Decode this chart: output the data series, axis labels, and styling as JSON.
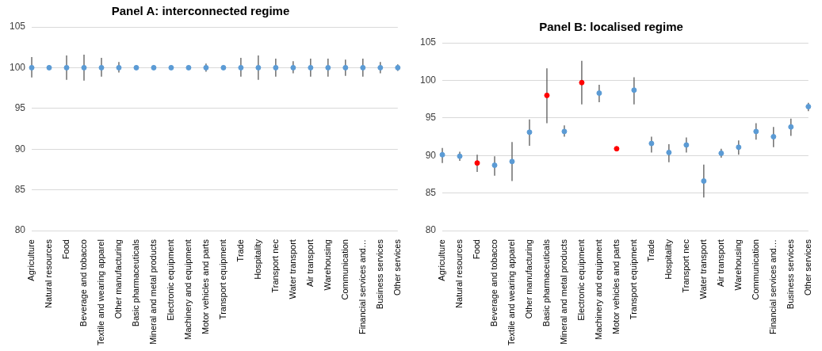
{
  "chart_data": [
    {
      "type": "scatter",
      "title": "Panel A: interconnected regime",
      "categories": [
        "Agriculture",
        "Natural resources",
        "Food",
        "Beverage and tobacco",
        "Textile and wearing apparel",
        "Other manufacturing",
        "Basic pharmaceuticals",
        "Mineral and metal products",
        "Electronic equipment",
        "Machinery and equipment",
        "Motor vehicles and parts",
        "Transport equipment",
        "Trade",
        "Hospitality",
        "Transport nec",
        "Water transport",
        "Air transport",
        "Warehousing",
        "Communication",
        "Financial services and…",
        "Business services",
        "Other services"
      ],
      "values": [
        100,
        100,
        100,
        100,
        100,
        100,
        100,
        100,
        100,
        100,
        100,
        100,
        100,
        100,
        100,
        100,
        100,
        100,
        100,
        100,
        100,
        100
      ],
      "errors": [
        [
          98.8,
          101.3
        ],
        null,
        [
          98.5,
          101.5
        ],
        [
          98.4,
          101.6
        ],
        [
          98.9,
          101.2
        ],
        [
          99.4,
          100.7
        ],
        null,
        null,
        null,
        null,
        [
          99.5,
          100.5
        ],
        null,
        [
          98.9,
          101.2
        ],
        [
          98.5,
          101.5
        ],
        [
          98.9,
          101.1
        ],
        [
          99.3,
          100.8
        ],
        [
          98.9,
          101.1
        ],
        [
          98.9,
          101.1
        ],
        [
          99.0,
          101.0
        ],
        [
          98.9,
          101.1
        ],
        [
          99.3,
          100.7
        ],
        [
          99.6,
          100.4
        ]
      ],
      "color": "#5b9bd5",
      "ylim": [
        80,
        105
      ],
      "yticks": [
        80,
        85,
        90,
        95,
        100,
        105
      ],
      "grid": "y",
      "legend": false,
      "marker": "circle"
    },
    {
      "type": "scatter",
      "title": "Panel B: localised regime",
      "categories": [
        "Agriculture",
        "Natural resources",
        "Food",
        "Beverage and tobacco",
        "Textile and wearing apparel",
        "Other manufacturing",
        "Basic pharmaceuticals",
        "Mineral and metal products",
        "Electronic equipment",
        "Machinery and equipment",
        "Motor vehicles and parts",
        "Transport equipment",
        "Trade",
        "Hospitality",
        "Transport nec",
        "Water transport",
        "Air transport",
        "Warehousing",
        "Communication",
        "Financial services and…",
        "Business services",
        "Other services"
      ],
      "values": [
        90.1,
        89.9,
        89.0,
        88.7,
        89.2,
        93.1,
        98.0,
        93.2,
        99.7,
        98.3,
        90.9,
        98.7,
        91.6,
        90.4,
        91.4,
        86.6,
        90.3,
        91.1,
        93.2,
        92.5,
        93.8,
        96.5
      ],
      "errors": [
        [
          89.0,
          91.0
        ],
        [
          89.3,
          90.5
        ],
        [
          87.8,
          90.1
        ],
        [
          87.3,
          89.9
        ],
        [
          86.6,
          91.8
        ],
        [
          91.3,
          94.8
        ],
        [
          94.3,
          101.6
        ],
        [
          92.5,
          94.0
        ],
        [
          96.8,
          102.6
        ],
        [
          97.1,
          99.4
        ],
        null,
        [
          96.8,
          100.4
        ],
        [
          90.4,
          92.5
        ],
        [
          89.1,
          91.5
        ],
        [
          90.4,
          92.4
        ],
        [
          84.4,
          88.8
        ],
        [
          89.7,
          90.9
        ],
        [
          90.1,
          92.0
        ],
        [
          92.1,
          94.3
        ],
        [
          91.1,
          93.8
        ],
        [
          92.6,
          94.9
        ],
        [
          95.9,
          97.0
        ]
      ],
      "colors": [
        "#5b9bd5",
        "#5b9bd5",
        "#ff0000",
        "#5b9bd5",
        "#5b9bd5",
        "#5b9bd5",
        "#ff0000",
        "#5b9bd5",
        "#ff0000",
        "#5b9bd5",
        "#ff0000",
        "#5b9bd5",
        "#5b9bd5",
        "#5b9bd5",
        "#5b9bd5",
        "#5b9bd5",
        "#5b9bd5",
        "#5b9bd5",
        "#5b9bd5",
        "#5b9bd5",
        "#5b9bd5",
        "#5b9bd5"
      ],
      "ylim": [
        80,
        105
      ],
      "yticks": [
        80,
        85,
        90,
        95,
        100,
        105
      ],
      "grid": "y",
      "legend": false,
      "marker": "circle"
    }
  ]
}
